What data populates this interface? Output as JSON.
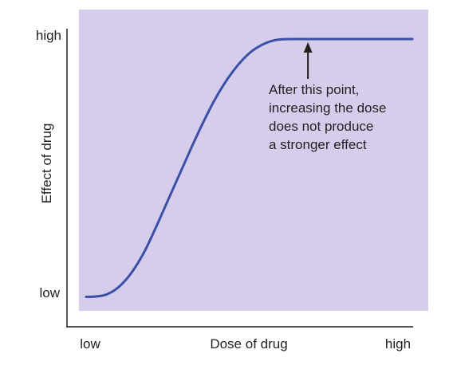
{
  "chart_data": {
    "type": "line",
    "title": "",
    "xlabel": "Dose of drug",
    "ylabel": "Effect of drug",
    "x_ticks": [
      "low",
      "high"
    ],
    "y_ticks": [
      "low",
      "high"
    ],
    "xlim": [
      0,
      1
    ],
    "ylim": [
      0,
      1
    ],
    "grid": false,
    "series": [
      {
        "points": [
          [
            0.0,
            0.002
          ],
          [
            0.03,
            0.003
          ],
          [
            0.06,
            0.01
          ],
          [
            0.09,
            0.03
          ],
          [
            0.12,
            0.065
          ],
          [
            0.15,
            0.115
          ],
          [
            0.18,
            0.18
          ],
          [
            0.21,
            0.26
          ],
          [
            0.24,
            0.345
          ],
          [
            0.27,
            0.43
          ],
          [
            0.3,
            0.515
          ],
          [
            0.33,
            0.6
          ],
          [
            0.36,
            0.68
          ],
          [
            0.39,
            0.755
          ],
          [
            0.42,
            0.82
          ],
          [
            0.45,
            0.875
          ],
          [
            0.48,
            0.92
          ],
          [
            0.51,
            0.955
          ],
          [
            0.54,
            0.978
          ],
          [
            0.57,
            0.993
          ],
          [
            0.6,
            0.999
          ],
          [
            0.65,
            1.0
          ],
          [
            0.75,
            1.0
          ],
          [
            0.9,
            1.0
          ],
          [
            1.0,
            1.0
          ]
        ]
      }
    ],
    "annotation": {
      "lines": [
        "After this point,",
        "increasing the dose",
        "does not produce",
        "a stronger effect"
      ],
      "arrow_to": [
        0.68,
        1.0
      ]
    },
    "colors": {
      "plot_background": "#d6cdec",
      "line": "#3a4fa6",
      "axis": "#231f20",
      "text": "#231f20"
    }
  }
}
